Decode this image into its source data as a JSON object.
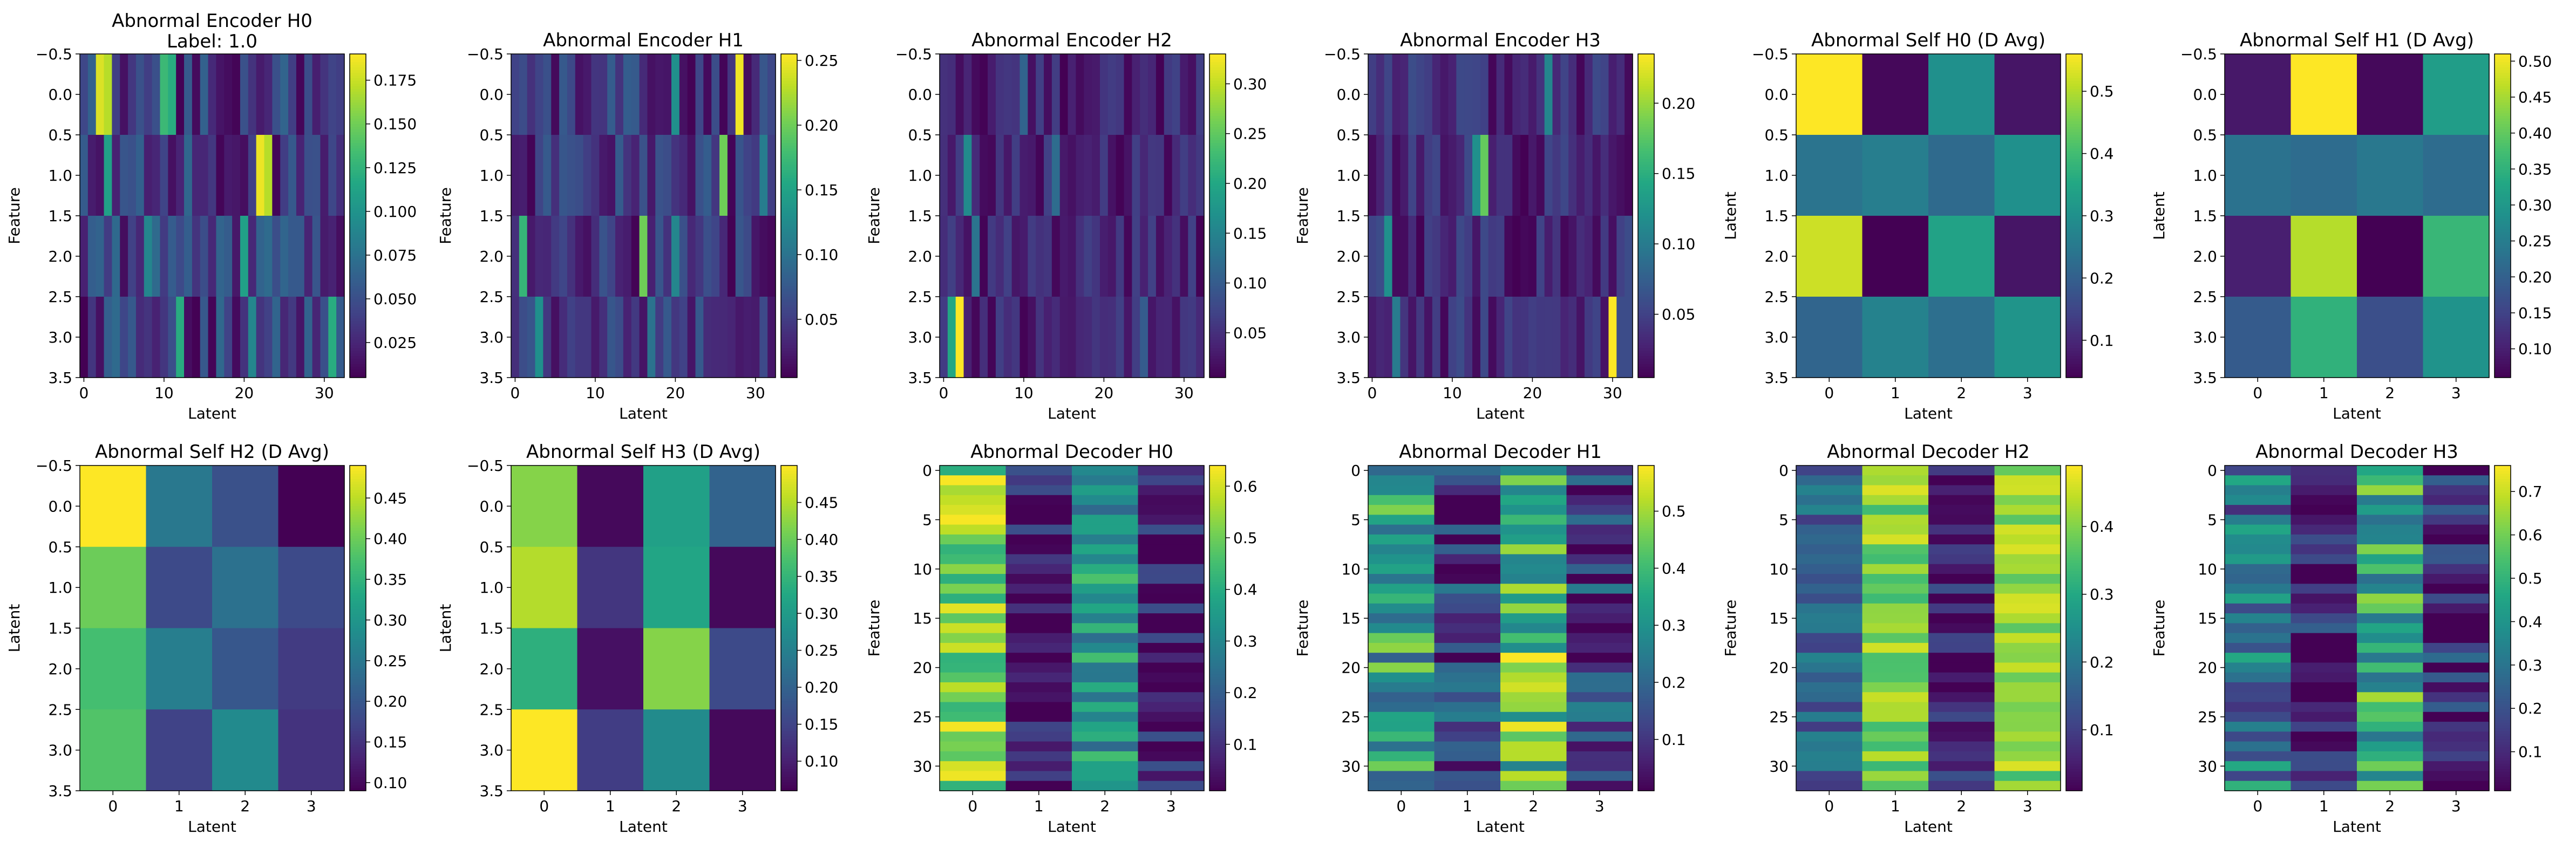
{
  "chart_data": [
    {
      "type": "heatmap",
      "title": "Abnormal Encoder H0",
      "subtitle": "Label: 1.0",
      "xlabel": "Latent",
      "ylabel": "Feature",
      "rows": 4,
      "cols": 33,
      "xticks": [
        "0",
        "10",
        "20",
        "30"
      ],
      "yticks": [
        "−0.5",
        "0.0",
        "0.5",
        "1.0",
        "1.5",
        "2.0",
        "2.5",
        "3.0",
        "3.5"
      ],
      "colorbar_ticks": [
        "0.025",
        "0.050",
        "0.075",
        "0.100",
        "0.125",
        "0.150",
        "0.175"
      ],
      "colorbar_range": [
        0.005,
        0.19
      ],
      "colorbar_tick_values": [
        0.025,
        0.05,
        0.075,
        0.1,
        0.125,
        0.15,
        0.175
      ],
      "colormap": "viridis",
      "hot_cells": [
        [
          0,
          2,
          0.18
        ],
        [
          0,
          3,
          0.17
        ],
        [
          0,
          10,
          0.13
        ],
        [
          0,
          11,
          0.12
        ],
        [
          1,
          22,
          0.185
        ],
        [
          1,
          23,
          0.17
        ],
        [
          1,
          3,
          0.11
        ],
        [
          2,
          8,
          0.09
        ],
        [
          2,
          20,
          0.11
        ],
        [
          3,
          12,
          0.12
        ],
        [
          3,
          21,
          0.09
        ],
        [
          3,
          31,
          0.12
        ]
      ],
      "base_range": [
        0.005,
        0.07
      ]
    },
    {
      "type": "heatmap",
      "title": "Abnormal Encoder H1",
      "subtitle": "",
      "xlabel": "Latent",
      "ylabel": "Feature",
      "rows": 4,
      "cols": 33,
      "xticks": [
        "0",
        "10",
        "20",
        "30"
      ],
      "yticks": [
        "−0.5",
        "0.0",
        "0.5",
        "1.0",
        "1.5",
        "2.0",
        "2.5",
        "3.0",
        "3.5"
      ],
      "colorbar_ticks": [
        "0.05",
        "0.10",
        "0.15",
        "0.20",
        "0.25"
      ],
      "colorbar_range": [
        0.005,
        0.255
      ],
      "colorbar_tick_values": [
        0.05,
        0.1,
        0.15,
        0.2,
        0.25
      ],
      "colormap": "viridis",
      "hot_cells": [
        [
          0,
          28,
          0.25
        ],
        [
          0,
          20,
          0.13
        ],
        [
          1,
          26,
          0.2
        ],
        [
          1,
          31,
          0.11
        ],
        [
          2,
          16,
          0.2
        ],
        [
          2,
          1,
          0.17
        ],
        [
          2,
          20,
          0.12
        ],
        [
          3,
          3,
          0.13
        ],
        [
          3,
          17,
          0.1
        ]
      ],
      "base_range": [
        0.005,
        0.08
      ]
    },
    {
      "type": "heatmap",
      "title": "Abnormal Encoder H2",
      "subtitle": "",
      "xlabel": "Latent",
      "ylabel": "Feature",
      "rows": 4,
      "cols": 33,
      "xticks": [
        "0",
        "10",
        "20",
        "30"
      ],
      "yticks": [
        "−0.5",
        "0.0",
        "0.5",
        "1.0",
        "1.5",
        "2.0",
        "2.5",
        "3.0",
        "3.5"
      ],
      "colorbar_ticks": [
        "0.05",
        "0.10",
        "0.15",
        "0.20",
        "0.25",
        "0.30"
      ],
      "colorbar_range": [
        0.005,
        0.33
      ],
      "colorbar_tick_values": [
        0.05,
        0.1,
        0.15,
        0.2,
        0.25,
        0.3
      ],
      "colormap": "viridis",
      "hot_cells": [
        [
          3,
          2,
          0.33
        ],
        [
          3,
          1,
          0.2
        ],
        [
          0,
          10,
          0.11
        ],
        [
          1,
          3,
          0.16
        ],
        [
          1,
          14,
          0.12
        ],
        [
          2,
          4,
          0.13
        ],
        [
          3,
          25,
          0.1
        ]
      ],
      "base_range": [
        0.005,
        0.07
      ]
    },
    {
      "type": "heatmap",
      "title": "Abnormal Encoder H3",
      "subtitle": "",
      "xlabel": "Latent",
      "ylabel": "Feature",
      "rows": 4,
      "cols": 33,
      "xticks": [
        "0",
        "10",
        "20",
        "30"
      ],
      "yticks": [
        "−0.5",
        "0.0",
        "0.5",
        "1.0",
        "1.5",
        "2.0",
        "2.5",
        "3.0",
        "3.5"
      ],
      "colorbar_ticks": [
        "0.05",
        "0.10",
        "0.15",
        "0.20"
      ],
      "colorbar_range": [
        0.005,
        0.235
      ],
      "colorbar_tick_values": [
        0.05,
        0.1,
        0.15,
        0.2
      ],
      "colormap": "viridis",
      "hot_cells": [
        [
          3,
          30,
          0.235
        ],
        [
          1,
          14,
          0.18
        ],
        [
          1,
          13,
          0.12
        ],
        [
          0,
          22,
          0.11
        ],
        [
          2,
          2,
          0.12
        ],
        [
          3,
          3,
          0.1
        ]
      ],
      "base_range": [
        0.005,
        0.06
      ]
    },
    {
      "type": "heatmap",
      "title": "Abnormal Self H0 (D Avg)",
      "subtitle": "",
      "xlabel": "Latent",
      "ylabel": "Latent",
      "rows": 4,
      "cols": 4,
      "xticks": [
        "0",
        "1",
        "2",
        "3"
      ],
      "yticks": [
        "−0.5",
        "0.0",
        "0.5",
        "1.0",
        "1.5",
        "2.0",
        "2.5",
        "3.0",
        "3.5"
      ],
      "colorbar_ticks": [
        "0.1",
        "0.2",
        "0.3",
        "0.4",
        "0.5"
      ],
      "colorbar_range": [
        0.04,
        0.56
      ],
      "colorbar_tick_values": [
        0.1,
        0.2,
        0.3,
        0.4,
        0.5
      ],
      "colormap": "viridis",
      "values": [
        [
          0.56,
          0.05,
          0.3,
          0.07
        ],
        [
          0.24,
          0.26,
          0.22,
          0.3
        ],
        [
          0.52,
          0.04,
          0.34,
          0.07
        ],
        [
          0.21,
          0.27,
          0.23,
          0.31
        ]
      ]
    },
    {
      "type": "heatmap",
      "title": "Abnormal Self H1 (D Avg)",
      "subtitle": "",
      "xlabel": "Latent",
      "ylabel": "Latent",
      "rows": 4,
      "cols": 4,
      "xticks": [
        "0",
        "1",
        "2",
        "3"
      ],
      "yticks": [
        "−0.5",
        "0.0",
        "0.5",
        "1.0",
        "1.5",
        "2.0",
        "2.5",
        "3.0",
        "3.5"
      ],
      "colorbar_ticks": [
        "0.10",
        "0.15",
        "0.20",
        "0.25",
        "0.30",
        "0.35",
        "0.40",
        "0.45",
        "0.50"
      ],
      "colorbar_range": [
        0.06,
        0.51
      ],
      "colorbar_tick_values": [
        0.1,
        0.15,
        0.2,
        0.25,
        0.3,
        0.35,
        0.4,
        0.45,
        0.5
      ],
      "colormap": "viridis",
      "values": [
        [
          0.09,
          0.51,
          0.07,
          0.31
        ],
        [
          0.23,
          0.22,
          0.24,
          0.22
        ],
        [
          0.1,
          0.46,
          0.06,
          0.36
        ],
        [
          0.19,
          0.35,
          0.17,
          0.29
        ]
      ]
    },
    {
      "type": "heatmap",
      "title": "Abnormal Self H2 (D Avg)",
      "subtitle": "",
      "xlabel": "Latent",
      "ylabel": "Latent",
      "rows": 4,
      "cols": 4,
      "xticks": [
        "0",
        "1",
        "2",
        "3"
      ],
      "yticks": [
        "−0.5",
        "0.0",
        "0.5",
        "1.0",
        "1.5",
        "2.0",
        "2.5",
        "3.0",
        "3.5"
      ],
      "colorbar_ticks": [
        "0.10",
        "0.15",
        "0.20",
        "0.25",
        "0.30",
        "0.35",
        "0.40",
        "0.45"
      ],
      "colorbar_range": [
        0.09,
        0.49
      ],
      "colorbar_tick_values": [
        0.1,
        0.15,
        0.2,
        0.25,
        0.3,
        0.35,
        0.4,
        0.45
      ],
      "colormap": "viridis",
      "values": [
        [
          0.49,
          0.25,
          0.19,
          0.09
        ],
        [
          0.4,
          0.18,
          0.24,
          0.18
        ],
        [
          0.37,
          0.26,
          0.2,
          0.16
        ],
        [
          0.38,
          0.17,
          0.28,
          0.15
        ]
      ]
    },
    {
      "type": "heatmap",
      "title": "Abnormal Self H3 (D Avg)",
      "subtitle": "",
      "xlabel": "Latent",
      "ylabel": "Latent",
      "rows": 4,
      "cols": 4,
      "xticks": [
        "0",
        "1",
        "2",
        "3"
      ],
      "yticks": [
        "−0.5",
        "0.0",
        "0.5",
        "1.0",
        "1.5",
        "2.0",
        "2.5",
        "3.0",
        "3.5"
      ],
      "colorbar_ticks": [
        "0.10",
        "0.15",
        "0.20",
        "0.25",
        "0.30",
        "0.35",
        "0.40",
        "0.45"
      ],
      "colorbar_range": [
        0.06,
        0.5
      ],
      "colorbar_tick_values": [
        0.1,
        0.15,
        0.2,
        0.25,
        0.3,
        0.35,
        0.4,
        0.45
      ],
      "colormap": "viridis",
      "values": [
        [
          0.42,
          0.07,
          0.31,
          0.2
        ],
        [
          0.45,
          0.13,
          0.32,
          0.07
        ],
        [
          0.34,
          0.08,
          0.42,
          0.16
        ],
        [
          0.5,
          0.14,
          0.27,
          0.07
        ]
      ]
    },
    {
      "type": "heatmap",
      "title": "Abnormal Decoder H0",
      "subtitle": "",
      "xlabel": "Latent",
      "ylabel": "Feature",
      "rows": 33,
      "cols": 4,
      "xticks": [
        "0",
        "1",
        "2",
        "3"
      ],
      "yticks": [
        "0",
        "5",
        "10",
        "15",
        "20",
        "25",
        "30"
      ],
      "colorbar_ticks": [
        "0.1",
        "0.2",
        "0.3",
        "0.4",
        "0.5",
        "0.6"
      ],
      "colorbar_range": [
        0.01,
        0.64
      ],
      "colorbar_tick_values": [
        0.1,
        0.2,
        0.3,
        0.4,
        0.5,
        0.6
      ],
      "colormap": "viridis",
      "col_levels": [
        0.52,
        0.06,
        0.34,
        0.06
      ],
      "jitter": 0.12
    },
    {
      "type": "heatmap",
      "title": "Abnormal Decoder H1",
      "subtitle": "",
      "xlabel": "Latent",
      "ylabel": "Feature",
      "rows": 33,
      "cols": 4,
      "xticks": [
        "0",
        "1",
        "2",
        "3"
      ],
      "yticks": [
        "0",
        "5",
        "10",
        "15",
        "20",
        "25",
        "30"
      ],
      "colorbar_ticks": [
        "0.1",
        "0.2",
        "0.3",
        "0.4",
        "0.5"
      ],
      "colorbar_range": [
        0.01,
        0.58
      ],
      "colorbar_tick_values": [
        0.1,
        0.2,
        0.3,
        0.4,
        0.5
      ],
      "colormap": "viridis",
      "col_levels": [
        0.34,
        0.1,
        0.42,
        0.1
      ],
      "jitter": 0.16
    },
    {
      "type": "heatmap",
      "title": "Abnormal Decoder H2",
      "subtitle": "",
      "xlabel": "Latent",
      "ylabel": "Feature",
      "rows": 33,
      "cols": 4,
      "xticks": [
        "0",
        "1",
        "2",
        "3"
      ],
      "yticks": [
        "0",
        "5",
        "10",
        "15",
        "20",
        "25",
        "30"
      ],
      "colorbar_ticks": [
        "0.1",
        "0.2",
        "0.3",
        "0.4"
      ],
      "colorbar_range": [
        0.01,
        0.49
      ],
      "colorbar_tick_values": [
        0.1,
        0.2,
        0.3,
        0.4
      ],
      "colormap": "viridis",
      "col_levels": [
        0.16,
        0.4,
        0.06,
        0.4
      ],
      "jitter": 0.07
    },
    {
      "type": "heatmap",
      "title": "Abnormal Decoder H3",
      "subtitle": "",
      "xlabel": "Latent",
      "ylabel": "Feature",
      "rows": 33,
      "cols": 4,
      "xticks": [
        "0",
        "1",
        "2",
        "3"
      ],
      "yticks": [
        "0",
        "5",
        "10",
        "15",
        "20",
        "25",
        "30"
      ],
      "colorbar_ticks": [
        "0.1",
        "0.2",
        "0.3",
        "0.4",
        "0.5",
        "0.6",
        "0.7"
      ],
      "colorbar_range": [
        0.01,
        0.76
      ],
      "colorbar_tick_values": [
        0.1,
        0.2,
        0.3,
        0.4,
        0.5,
        0.6,
        0.7
      ],
      "colormap": "viridis",
      "col_levels": [
        0.3,
        0.07,
        0.48,
        0.08
      ],
      "jitter": 0.2
    }
  ]
}
